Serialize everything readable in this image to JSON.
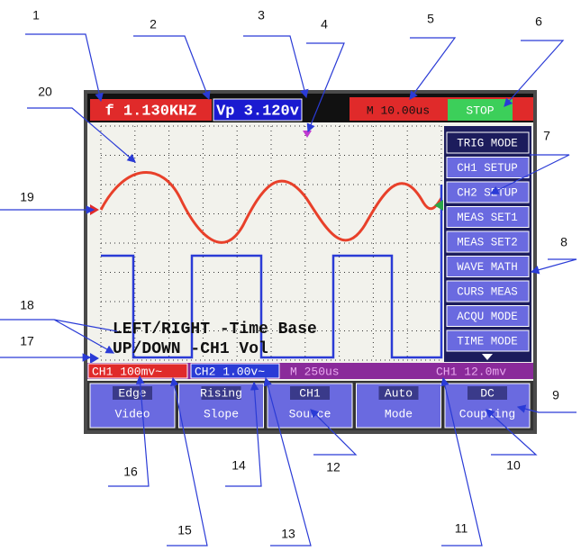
{
  "header": {
    "readouts": [
      "f 1.130KHZ",
      "Vp 3.120v",
      "M 10.00us",
      "STOP"
    ]
  },
  "menu": {
    "items": [
      "TRIG MODE",
      "CH1 SETUP",
      "CH2 SETUP",
      "MEAS SET1",
      "MEAS SET2",
      "WAVE MATH",
      "CURS MEAS",
      "ACQU MODE",
      "TIME MODE"
    ]
  },
  "overlay_text": [
    "LEFT/RIGHT -Time Base",
    "UP/DOWN -CH1 Vol"
  ],
  "status": [
    "CH1 100mv~",
    "CH2 1.00v~",
    "M 250us",
    "CH1 12.0mv"
  ],
  "buttons": [
    {
      "top": "Edge",
      "bottom": "Video"
    },
    {
      "top": "Rising",
      "bottom": "Slope"
    },
    {
      "top": "CH1",
      "bottom": "Source"
    },
    {
      "top": "Auto",
      "bottom": "Mode"
    },
    {
      "top": "DC",
      "bottom": "Coupling"
    }
  ],
  "callouts": [
    "1",
    "2",
    "3",
    "4",
    "5",
    "6",
    "7",
    "8",
    "9",
    "10",
    "11",
    "12",
    "13",
    "14",
    "15",
    "16",
    "17",
    "18",
    "19",
    "20"
  ]
}
